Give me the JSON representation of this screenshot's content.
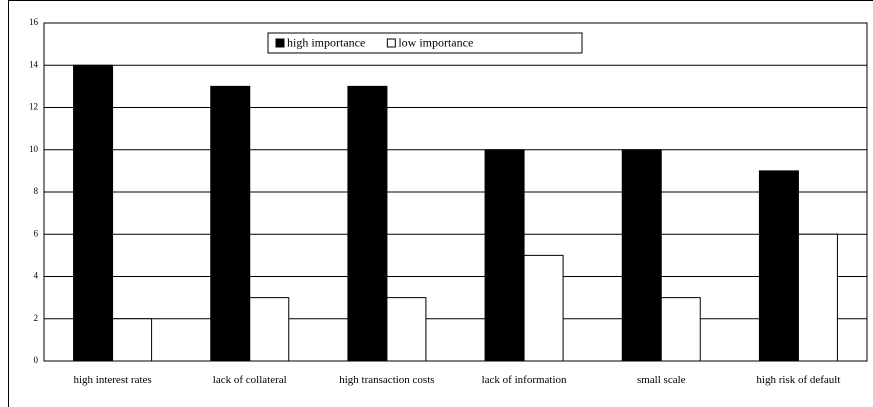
{
  "chart_data": {
    "type": "bar",
    "categories": [
      "high interest rates",
      "lack of collateral",
      "high transaction costs",
      "lack of information",
      "small scale",
      "high risk of default"
    ],
    "series": [
      {
        "name": "high importance",
        "color": "#000000",
        "values": [
          14,
          13,
          13,
          10,
          10,
          9
        ]
      },
      {
        "name": "low importance",
        "color": "#ffffff",
        "values": [
          2,
          3,
          3,
          5,
          3,
          6
        ]
      }
    ],
    "ylim": [
      0,
      16
    ],
    "yticks": [
      0,
      2,
      4,
      6,
      8,
      10,
      12,
      14,
      16
    ],
    "grid": true,
    "legend": "top"
  }
}
